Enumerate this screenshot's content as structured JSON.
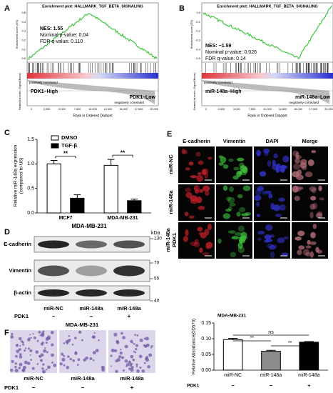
{
  "panels": {
    "A": {
      "letter": "A",
      "title": "Enrichment plot: HALLMARK_TGF_BETA_SIGNALING",
      "es_label": "Enrichment score (ES)",
      "es_ticks": [
        "0.5",
        "0.4",
        "0.3",
        "0.2",
        "0.1",
        "0.0"
      ],
      "stats": [
        "NES: 1.55",
        "Nominal p-value: 0.04",
        "FDR q-value: 0.110"
      ],
      "pos": "positively correlated",
      "neg": "negatively correlated",
      "high": "PDK1–High",
      "low": "PDK1–Low",
      "metric_label": "Ranked list metric (Signal2Noise)",
      "x_ticks": [
        "0",
        "2,500",
        "5,000",
        "7,500",
        "10,000",
        "12,500",
        "15,000",
        "17,500",
        "20,000"
      ],
      "x_label": "Rank in Ordered Dataset"
    },
    "B": {
      "letter": "B",
      "title": "Enrichment plot: HALLMARK_TGF_BETA_SIGNALING",
      "es_label": "Enrichment score (ES)",
      "es_ticks": [
        "0.0",
        "-0.1",
        "-0.2",
        "-0.3",
        "-0.4",
        "-0.5"
      ],
      "stats": [
        "NES: −1.59",
        "Nominal p-value: 0.026",
        "FDR q-value: 0.14"
      ],
      "pos": "positively correlated",
      "neg": "negatively correlated",
      "high": "miR-148a–High",
      "low": "miR-148a–Low",
      "metric_label": "Ranked list metric (Signal2Noise)",
      "x_ticks": [
        "0",
        "2,500",
        "5,000",
        "7,500",
        "10,000",
        "12,500",
        "15,000",
        "17,500",
        "20,000"
      ],
      "x_label": "Rank in Ordered Dataset"
    },
    "D": {
      "letter": "D",
      "title": "MDA-MB-231",
      "unit": "kDa",
      "proteins": [
        "E-cadherin",
        "Vimentin",
        "β-actin"
      ],
      "markers": [
        "130",
        "70",
        "55",
        "40"
      ],
      "lanes": [
        "miR-NC",
        "miR-148a",
        "miR-148a"
      ],
      "pdk1": "PDK1",
      "signs": [
        "−",
        "−",
        "+"
      ]
    },
    "E": {
      "letter": "E",
      "columns": [
        "E-cadherin",
        "Vimentin",
        "DAPI",
        "Merge"
      ],
      "rows": [
        "miR-NC",
        "miR-148a",
        "miR-148a",
        "PDK1"
      ]
    },
    "F": {
      "letter": "F",
      "title": "MDA-MB-231",
      "lanes": [
        "miR-NC",
        "miR-148a",
        "miR-148a"
      ],
      "pdk1": "PDK1",
      "signs": [
        "−",
        "−",
        "+"
      ]
    }
  },
  "chart_data": [
    {
      "type": "bar",
      "letter": "C",
      "ylabel": "Relative miR-148a expression",
      "ylabel2": "(compared to U6)",
      "categories": [
        "MCF7",
        "MDA-MB-231"
      ],
      "series": [
        {
          "name": "DMSO",
          "color": "#ffffff",
          "values": [
            1.0,
            0.97
          ],
          "errors": [
            0.07,
            0.12
          ]
        },
        {
          "name": "TGF-β",
          "color": "#000000",
          "values": [
            0.3,
            0.25
          ],
          "errors": [
            0.07,
            0.03
          ]
        }
      ],
      "ylim": [
        0,
        1.5
      ],
      "yticks": [
        {
          "value": 0,
          "label": "0.0"
        },
        0.5,
        {
          "value": 1,
          "label": "1.0"
        },
        {
          "value": 1.5,
          "label": "1.5"
        }
      ],
      "annotations": [
        "**",
        "**"
      ]
    },
    {
      "type": "bar",
      "title": "MDA-MB-231",
      "ylabel": "Relative Absorbance(OD570)",
      "categories": [
        "miR-NC",
        "miR-148a",
        "miR-148a"
      ],
      "values": [
        0.097,
        0.06,
        0.089
      ],
      "errors": [
        0.004,
        0.003,
        0.002
      ],
      "colors": [
        "#ffffff",
        "#8c8c8c",
        "#000000"
      ],
      "ylim": [
        0,
        0.15
      ],
      "yticks": [
        {
          "value": 0,
          "label": "0.00"
        },
        0.05,
        {
          "value": 0.1,
          "label": "0.10"
        },
        0.15
      ],
      "annotations": [
        "**",
        "ns",
        "**"
      ],
      "pdk1": "PDK1",
      "signs": [
        "−",
        "−",
        "+"
      ]
    }
  ]
}
